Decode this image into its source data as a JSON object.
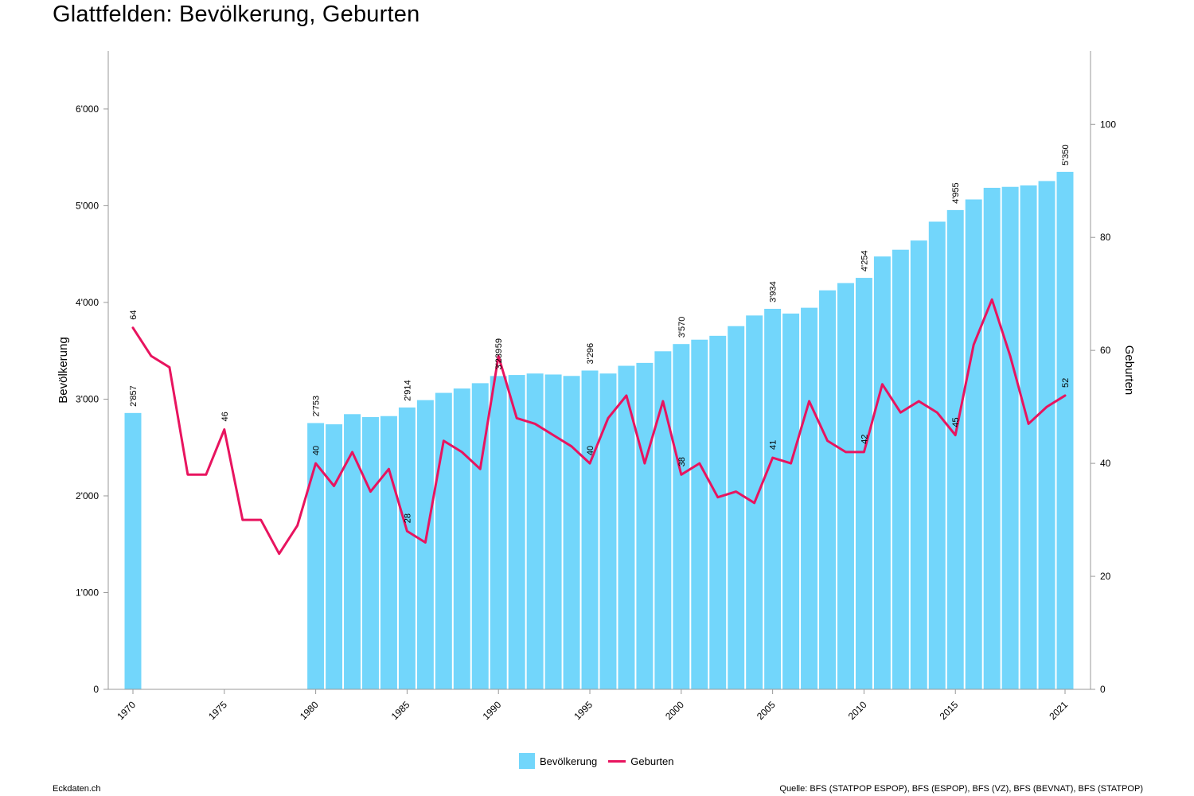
{
  "title": "Glattfelden: Bevölkerung, Geburten",
  "footer": {
    "site": "Eckdaten.ch",
    "source": "Quelle: BFS (STATPOP ESPOP), BFS (ESPOP), BFS (VZ), BFS (BEVNAT), BFS (STATPOP)"
  },
  "colors": {
    "bars": "#72d6fb",
    "line": "#e8145f",
    "axis": "#999999"
  },
  "chart_data": {
    "type": "bar",
    "ylabel_left": "Bevölkerung",
    "ylabel_right": "Geburten",
    "y_left_ticks": [
      "0",
      "1'000",
      "2'000",
      "3'000",
      "4'000",
      "5'000",
      "6'000"
    ],
    "y_left_range": [
      0,
      6600
    ],
    "y_right_ticks": [
      "0",
      "20",
      "40",
      "60",
      "80",
      "100"
    ],
    "y_right_range": [
      0,
      113
    ],
    "x_ticks": [
      "1970",
      "1975",
      "1980",
      "1985",
      "1990",
      "1995",
      "2000",
      "2005",
      "2010",
      "2015",
      "2021"
    ],
    "grid": false,
    "legend_position": "bottom-center",
    "series": [
      {
        "name": "Bevölkerung",
        "type": "bar",
        "x": [
          1970,
          1980,
          1981,
          1982,
          1983,
          1984,
          1985,
          1986,
          1987,
          1988,
          1989,
          1990,
          1991,
          1992,
          1993,
          1994,
          1995,
          1996,
          1997,
          1998,
          1999,
          2000,
          2001,
          2002,
          2003,
          2004,
          2005,
          2006,
          2007,
          2008,
          2009,
          2010,
          2011,
          2012,
          2013,
          2014,
          2015,
          2016,
          2017,
          2018,
          2019,
          2020,
          2021
        ],
        "values": [
          2857,
          2753,
          2740,
          2845,
          2815,
          2825,
          2914,
          2990,
          3065,
          3110,
          3165,
          3239,
          3250,
          3265,
          3255,
          3240,
          3296,
          3265,
          3345,
          3375,
          3495,
          3570,
          3615,
          3655,
          3755,
          3865,
          3934,
          3885,
          3945,
          4125,
          4200,
          4254,
          4475,
          4545,
          4640,
          4835,
          4955,
          5065,
          5185,
          5195,
          5210,
          5255,
          5350
        ],
        "labels": [
          {
            "x": 1970,
            "text": "2'857"
          },
          {
            "x": 1980,
            "text": "2'753"
          },
          {
            "x": 1985,
            "text": "2'914"
          },
          {
            "x": 1990,
            "text": "3'239"
          },
          {
            "x": 1995,
            "text": "3'296"
          },
          {
            "x": 2000,
            "text": "3'570"
          },
          {
            "x": 2005,
            "text": "3'934"
          },
          {
            "x": 2010,
            "text": "4'254"
          },
          {
            "x": 2015,
            "text": "4'955"
          },
          {
            "x": 2021,
            "text": "5'350"
          }
        ]
      },
      {
        "name": "Geburten",
        "type": "line",
        "x": [
          1970,
          1971,
          1972,
          1973,
          1974,
          1975,
          1976,
          1977,
          1978,
          1979,
          1980,
          1981,
          1982,
          1983,
          1984,
          1985,
          1986,
          1987,
          1988,
          1989,
          1990,
          1991,
          1992,
          1993,
          1994,
          1995,
          1996,
          1997,
          1998,
          1999,
          2000,
          2001,
          2002,
          2003,
          2004,
          2005,
          2006,
          2007,
          2008,
          2009,
          2010,
          2011,
          2012,
          2013,
          2014,
          2015,
          2016,
          2017,
          2018,
          2019,
          2020,
          2021
        ],
        "values": [
          64,
          59,
          57,
          38,
          38,
          46,
          30,
          30,
          24,
          29,
          40,
          36,
          42,
          35,
          39,
          28,
          26,
          44,
          42,
          39,
          59,
          48,
          47,
          45,
          43,
          40,
          48,
          52,
          40,
          51,
          38,
          40,
          34,
          35,
          33,
          41,
          40,
          51,
          44,
          42,
          42,
          54,
          49,
          51,
          49,
          45,
          61,
          69,
          59,
          47,
          50,
          52
        ],
        "labels": [
          {
            "x": 1970,
            "text": "64"
          },
          {
            "x": 1975,
            "text": "46"
          },
          {
            "x": 1980,
            "text": "40"
          },
          {
            "x": 1985,
            "text": "28"
          },
          {
            "x": 1990,
            "text": "59"
          },
          {
            "x": 1995,
            "text": "40"
          },
          {
            "x": 2000,
            "text": "38"
          },
          {
            "x": 2005,
            "text": "41"
          },
          {
            "x": 2010,
            "text": "42"
          },
          {
            "x": 2015,
            "text": "45"
          },
          {
            "x": 2021,
            "text": "52"
          }
        ]
      }
    ]
  }
}
